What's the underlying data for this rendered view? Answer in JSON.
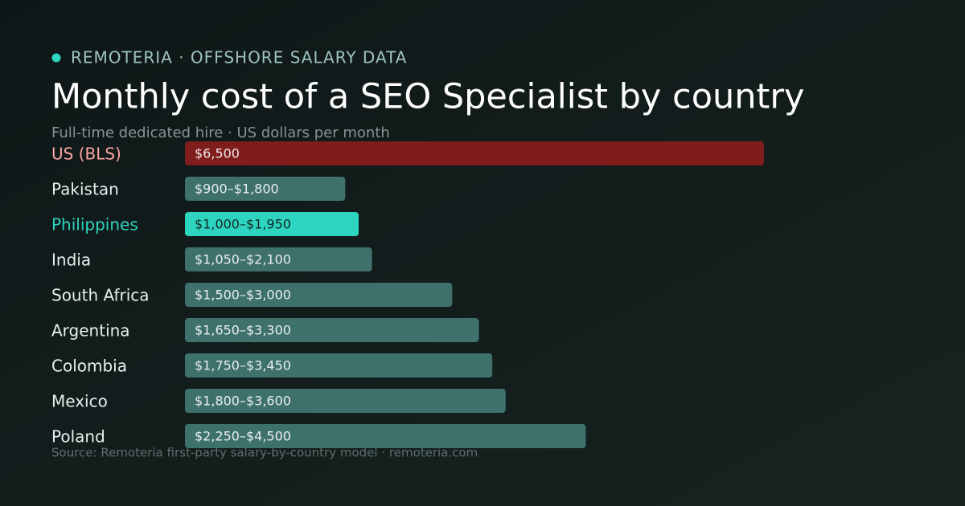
{
  "chart_data": {
    "type": "bar",
    "orientation": "horizontal",
    "kicker": "REMOTERIA · OFFSHORE SALARY DATA",
    "title": "Monthly cost of a SEO Specialist by country",
    "subtitle": "Full-time dedicated hire · US dollars per month",
    "source": "Source: Remoteria first-party salary-by-country model · remoteria.com",
    "categories": [
      "US (BLS)",
      "Pakistan",
      "Philippines",
      "India",
      "South Africa",
      "Argentina",
      "Colombia",
      "Mexico",
      "Poland"
    ],
    "values": [
      6500,
      1800,
      1950,
      2100,
      3000,
      3300,
      3450,
      3600,
      4500
    ],
    "value_labels": [
      "$6,500",
      "$900–$1,800",
      "$1,000–$1,950",
      "$1,050–$2,100",
      "$1,500–$3,000",
      "$1,650–$3,300",
      "$1,750–$3,450",
      "$1,800–$3,600",
      "$2,250–$4,500"
    ],
    "colors": [
      "#7f1d1d",
      "#3f716c",
      "#2dd4bf",
      "#3f716c",
      "#3f716c",
      "#3f716c",
      "#3f716c",
      "#3f716c",
      "#3f716c"
    ],
    "label_colors": [
      "#fca5a5",
      "#e8eeed",
      "#2dd4bf",
      "#e8eeed",
      "#e8eeed",
      "#e8eeed",
      "#e8eeed",
      "#e8eeed",
      "#e8eeed"
    ],
    "value_label_colors": [
      "#f3e6e6",
      "#e8eeed",
      "#0f2a28",
      "#e8eeed",
      "#e8eeed",
      "#e8eeed",
      "#e8eeed",
      "#e8eeed",
      "#e8eeed"
    ]
  }
}
